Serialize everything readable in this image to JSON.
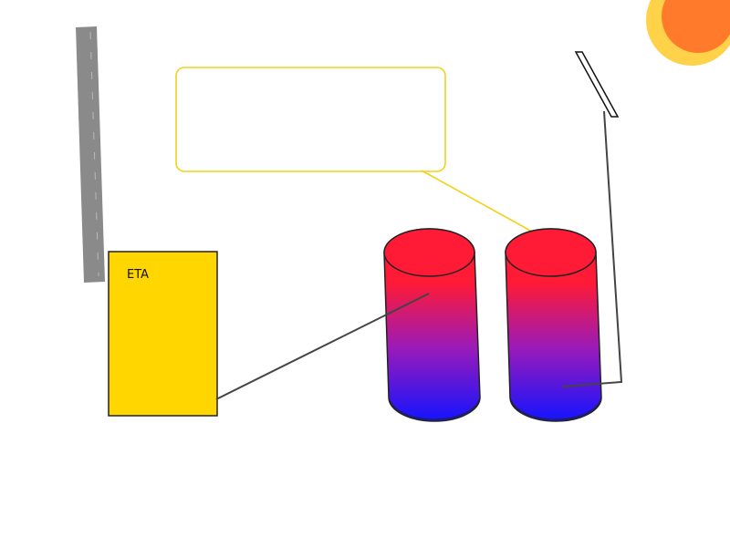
{
  "diagram": {
    "boiler_label": "ETA",
    "callout_text": ""
  },
  "colors": {
    "boiler_fill": "#ffd600",
    "pipe_gray": "#8a8a8a",
    "tank_top": "#ff1a35",
    "tank_bottom": "#1414ff",
    "callout_border": "#f2d21c",
    "sun_outer": "#ffd24a",
    "sun_inner": "#ff7a2a",
    "line": "#444444"
  },
  "icons": {
    "sun": "sun-icon",
    "solar_collector": "solar-panel-icon",
    "chimney": "chimney-pipe-icon",
    "tank": "storage-tank-icon"
  }
}
